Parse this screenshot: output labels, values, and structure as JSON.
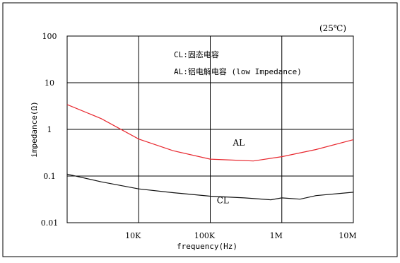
{
  "chart_data": {
    "type": "line",
    "title": "(25℃)",
    "xlabel": "frequency(Hz)",
    "ylabel": "impedance(Ω)",
    "x_scale": "log",
    "y_scale": "log",
    "xlim": [
      1000,
      10000000
    ],
    "ylim": [
      0.01,
      100
    ],
    "grid": true,
    "x_ticks": [
      {
        "value": 10000,
        "label": "10K"
      },
      {
        "value": 100000,
        "label": "100K"
      },
      {
        "value": 1000000,
        "label": "1M"
      },
      {
        "value": 10000000,
        "label": "10M"
      }
    ],
    "y_ticks": [
      {
        "value": 100,
        "label": "100"
      },
      {
        "value": 10,
        "label": "10"
      },
      {
        "value": 1,
        "label": "1"
      },
      {
        "value": 0.1,
        "label": "0.1"
      },
      {
        "value": 0.01,
        "label": "0.01"
      }
    ],
    "legend_lines": [
      "CL:固态电容",
      "AL:铝电解电容 (low Impedance)"
    ],
    "series": [
      {
        "name": "AL",
        "color": "#e8282f",
        "x": [
          1000,
          3000,
          10000,
          30000,
          100000,
          200000,
          400000,
          1000000,
          3000000,
          10000000
        ],
        "y": [
          3.4,
          1.7,
          0.62,
          0.35,
          0.23,
          0.22,
          0.21,
          0.26,
          0.37,
          0.6
        ]
      },
      {
        "name": "CL",
        "color": "#111111",
        "x": [
          1000,
          3000,
          10000,
          30000,
          100000,
          300000,
          700000,
          1000000,
          1800000,
          3000000,
          10000000
        ],
        "y": [
          0.11,
          0.075,
          0.053,
          0.044,
          0.037,
          0.034,
          0.031,
          0.034,
          0.032,
          0.038,
          0.045
        ]
      }
    ],
    "series_labels": [
      {
        "text": "AL",
        "x": 250000,
        "y": 0.45
      },
      {
        "text": "CL",
        "x": 150000,
        "y": 0.026
      }
    ]
  }
}
